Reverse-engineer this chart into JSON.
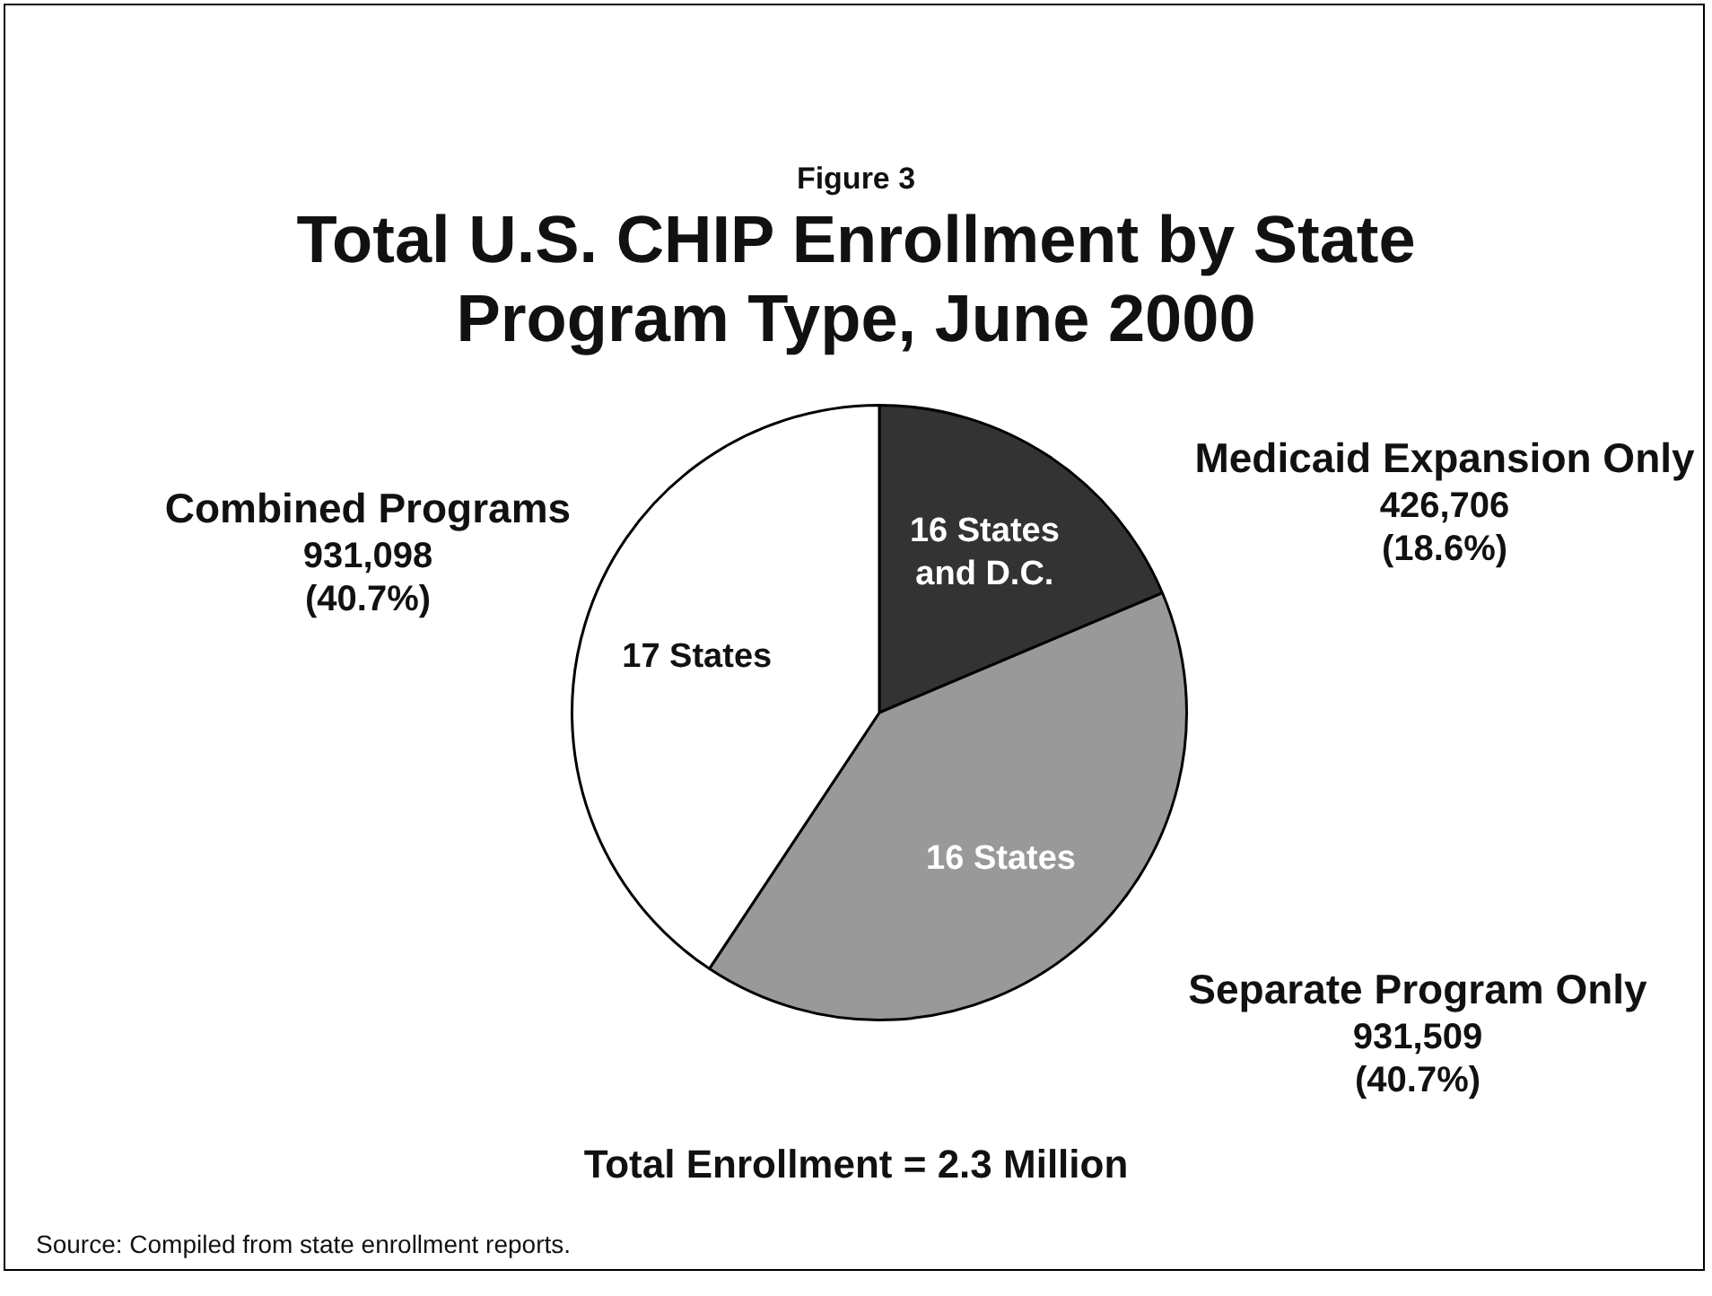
{
  "chart_data": {
    "type": "pie",
    "subtitle": "Figure 3",
    "title": "Total U.S. CHIP Enrollment by State Program Type, June 2000",
    "categories": [
      "Medicaid Expansion Only",
      "Separate Program Only",
      "Combined Programs"
    ],
    "values": [
      426706,
      931509,
      931098
    ],
    "colors": [
      "#333333",
      "#999999",
      "#ffffff"
    ],
    "value_labels": [
      "426,706\n(18.6%)",
      "931,509\n(40.7%)",
      "931,098\n(40.7%)"
    ],
    "legend": false,
    "annotations": [
      {
        "text": "16 States and D.C.",
        "x": "Medicaid Expansion Only"
      },
      {
        "text": "16 States",
        "x": "Separate Program Only"
      },
      {
        "text": "17 States",
        "x": "Combined Programs"
      },
      "Total Enrollment = 2.3 Million",
      "Source: Compiled from state enrollment reports."
    ]
  }
}
